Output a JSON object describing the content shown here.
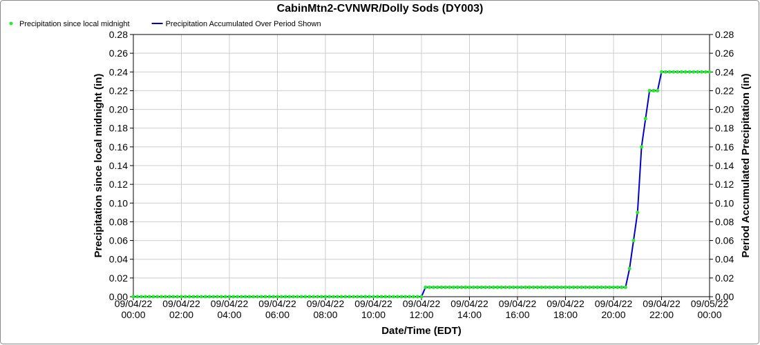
{
  "chart_data": {
    "type": "line",
    "title": "CabinMtn2-CVNWR/Dolly Sods (DY003)",
    "x_label": "Date/Time (EDT)",
    "y_label": "Precipitation since local midnight (in)",
    "y2_label": "Period Accumulated Precipitation (in)",
    "grid": true,
    "legend": "top-left",
    "x": [
      "09/04/22 00:00",
      "09/04/22 00:10",
      "09/04/22 00:20",
      "09/04/22 00:30",
      "09/04/22 00:40",
      "09/04/22 00:50",
      "09/04/22 01:00",
      "09/04/22 01:10",
      "09/04/22 01:20",
      "09/04/22 01:30",
      "09/04/22 01:40",
      "09/04/22 01:50",
      "09/04/22 02:00",
      "09/04/22 02:10",
      "09/04/22 02:20",
      "09/04/22 02:30",
      "09/04/22 02:40",
      "09/04/22 02:50",
      "09/04/22 03:00",
      "09/04/22 03:10",
      "09/04/22 03:20",
      "09/04/22 03:30",
      "09/04/22 03:40",
      "09/04/22 03:50",
      "09/04/22 04:00",
      "09/04/22 04:10",
      "09/04/22 04:20",
      "09/04/22 04:30",
      "09/04/22 04:40",
      "09/04/22 04:50",
      "09/04/22 05:00",
      "09/04/22 05:10",
      "09/04/22 05:20",
      "09/04/22 05:30",
      "09/04/22 05:40",
      "09/04/22 05:50",
      "09/04/22 06:00",
      "09/04/22 06:10",
      "09/04/22 06:20",
      "09/04/22 06:30",
      "09/04/22 06:40",
      "09/04/22 06:50",
      "09/04/22 07:00",
      "09/04/22 07:10",
      "09/04/22 07:20",
      "09/04/22 07:30",
      "09/04/22 07:40",
      "09/04/22 07:50",
      "09/04/22 08:00",
      "09/04/22 08:10",
      "09/04/22 08:20",
      "09/04/22 08:30",
      "09/04/22 08:40",
      "09/04/22 08:50",
      "09/04/22 09:00",
      "09/04/22 09:10",
      "09/04/22 09:20",
      "09/04/22 09:30",
      "09/04/22 09:40",
      "09/04/22 09:50",
      "09/04/22 10:00",
      "09/04/22 10:10",
      "09/04/22 10:20",
      "09/04/22 10:30",
      "09/04/22 10:40",
      "09/04/22 10:50",
      "09/04/22 11:00",
      "09/04/22 11:10",
      "09/04/22 11:20",
      "09/04/22 11:30",
      "09/04/22 11:40",
      "09/04/22 11:50",
      "09/04/22 12:00",
      "09/04/22 12:10",
      "09/04/22 12:20",
      "09/04/22 12:30",
      "09/04/22 12:40",
      "09/04/22 12:50",
      "09/04/22 13:00",
      "09/04/22 13:10",
      "09/04/22 13:20",
      "09/04/22 13:30",
      "09/04/22 13:40",
      "09/04/22 13:50",
      "09/04/22 14:00",
      "09/04/22 14:10",
      "09/04/22 14:20",
      "09/04/22 14:30",
      "09/04/22 14:40",
      "09/04/22 14:50",
      "09/04/22 15:00",
      "09/04/22 15:10",
      "09/04/22 15:20",
      "09/04/22 15:30",
      "09/04/22 15:40",
      "09/04/22 15:50",
      "09/04/22 16:00",
      "09/04/22 16:10",
      "09/04/22 16:20",
      "09/04/22 16:30",
      "09/04/22 16:40",
      "09/04/22 16:50",
      "09/04/22 17:00",
      "09/04/22 17:10",
      "09/04/22 17:20",
      "09/04/22 17:30",
      "09/04/22 17:40",
      "09/04/22 17:50",
      "09/04/22 18:00",
      "09/04/22 18:10",
      "09/04/22 18:20",
      "09/04/22 18:30",
      "09/04/22 18:40",
      "09/04/22 18:50",
      "09/04/22 19:00",
      "09/04/22 19:10",
      "09/04/22 19:20",
      "09/04/22 19:30",
      "09/04/22 19:40",
      "09/04/22 19:50",
      "09/04/22 20:00",
      "09/04/22 20:10",
      "09/04/22 20:20",
      "09/04/22 20:30",
      "09/04/22 20:40",
      "09/04/22 20:50",
      "09/04/22 21:00",
      "09/04/22 21:10",
      "09/04/22 21:20",
      "09/04/22 21:30",
      "09/04/22 21:40",
      "09/04/22 21:50",
      "09/04/22 22:00",
      "09/04/22 22:10",
      "09/04/22 22:20",
      "09/04/22 22:30",
      "09/04/22 22:40",
      "09/04/22 22:50",
      "09/04/22 23:00",
      "09/04/22 23:10",
      "09/04/22 23:20",
      "09/04/22 23:30",
      "09/04/22 23:40",
      "09/04/22 23:50",
      "09/05/22 00:00"
    ],
    "series": [
      {
        "name": "Precipitation since local midnight",
        "color": "#22ee22",
        "style": "points",
        "values": [
          0,
          0,
          0,
          0,
          0,
          0,
          0,
          0,
          0,
          0,
          0,
          0,
          0,
          0,
          0,
          0,
          0,
          0,
          0,
          0,
          0,
          0,
          0,
          0,
          0,
          0,
          0,
          0,
          0,
          0,
          0,
          0,
          0,
          0,
          0,
          0,
          0,
          0,
          0,
          0,
          0,
          0,
          0,
          0,
          0,
          0,
          0,
          0,
          0,
          0,
          0,
          0,
          0,
          0,
          0,
          0,
          0,
          0,
          0,
          0,
          0,
          0,
          0,
          0,
          0,
          0,
          0,
          0,
          0,
          0,
          0,
          0,
          0,
          0.01,
          0.01,
          0.01,
          0.01,
          0.01,
          0.01,
          0.01,
          0.01,
          0.01,
          0.01,
          0.01,
          0.01,
          0.01,
          0.01,
          0.01,
          0.01,
          0.01,
          0.01,
          0.01,
          0.01,
          0.01,
          0.01,
          0.01,
          0.01,
          0.01,
          0.01,
          0.01,
          0.01,
          0.01,
          0.01,
          0.01,
          0.01,
          0.01,
          0.01,
          0.01,
          0.01,
          0.01,
          0.01,
          0.01,
          0.01,
          0.01,
          0.01,
          0.01,
          0.01,
          0.01,
          0.01,
          0.01,
          0.01,
          0.01,
          0.01,
          0.01,
          0.03,
          0.06,
          0.09,
          0.16,
          0.19,
          0.22,
          0.22,
          0.22,
          0.24,
          0.24,
          0.24,
          0.24,
          0.24,
          0.24,
          0.24,
          0.24,
          0.24,
          0.24,
          0.24,
          0.24,
          0.24
        ]
      },
      {
        "name": "Precipitation Accumulated Over Period Shown",
        "color": "#0000cc",
        "style": "line",
        "axis": "y2",
        "values": [
          0,
          0,
          0,
          0,
          0,
          0,
          0,
          0,
          0,
          0,
          0,
          0,
          0,
          0,
          0,
          0,
          0,
          0,
          0,
          0,
          0,
          0,
          0,
          0,
          0,
          0,
          0,
          0,
          0,
          0,
          0,
          0,
          0,
          0,
          0,
          0,
          0,
          0,
          0,
          0,
          0,
          0,
          0,
          0,
          0,
          0,
          0,
          0,
          0,
          0,
          0,
          0,
          0,
          0,
          0,
          0,
          0,
          0,
          0,
          0,
          0,
          0,
          0,
          0,
          0,
          0,
          0,
          0,
          0,
          0,
          0,
          0,
          0,
          0.01,
          0.01,
          0.01,
          0.01,
          0.01,
          0.01,
          0.01,
          0.01,
          0.01,
          0.01,
          0.01,
          0.01,
          0.01,
          0.01,
          0.01,
          0.01,
          0.01,
          0.01,
          0.01,
          0.01,
          0.01,
          0.01,
          0.01,
          0.01,
          0.01,
          0.01,
          0.01,
          0.01,
          0.01,
          0.01,
          0.01,
          0.01,
          0.01,
          0.01,
          0.01,
          0.01,
          0.01,
          0.01,
          0.01,
          0.01,
          0.01,
          0.01,
          0.01,
          0.01,
          0.01,
          0.01,
          0.01,
          0.01,
          0.01,
          0.01,
          0.01,
          0.03,
          0.06,
          0.09,
          0.16,
          0.19,
          0.22,
          0.22,
          0.22,
          0.24,
          0.24,
          0.24,
          0.24,
          0.24,
          0.24,
          0.24,
          0.24,
          0.24,
          0.24,
          0.24,
          0.24,
          0.24
        ]
      }
    ],
    "xlim": [
      "09/04/22 00:00",
      "09/05/22 00:00"
    ],
    "xticks": [
      "09/04/22 00:00",
      "09/04/22 02:00",
      "09/04/22 04:00",
      "09/04/22 06:00",
      "09/04/22 08:00",
      "09/04/22 10:00",
      "09/04/22 12:00",
      "09/04/22 14:00",
      "09/04/22 16:00",
      "09/04/22 18:00",
      "09/04/22 20:00",
      "09/04/22 22:00",
      "09/05/22 00:00"
    ],
    "ylim": [
      0,
      0.28
    ],
    "yticks": [
      {
        "value": 0,
        "label": "0.00"
      },
      {
        "value": 0.02,
        "label": "0.02"
      },
      {
        "value": 0.04,
        "label": "0.04"
      },
      {
        "value": 0.06,
        "label": "0.06"
      },
      {
        "value": 0.08,
        "label": "0.08"
      },
      {
        "value": 0.1,
        "label": "0.10"
      },
      {
        "value": 0.12,
        "label": "0.12"
      },
      {
        "value": 0.14,
        "label": "0.14"
      },
      {
        "value": 0.16,
        "label": "0.16"
      },
      {
        "value": 0.18,
        "label": "0.18"
      },
      {
        "value": 0.2,
        "label": "0.20"
      },
      {
        "value": 0.22,
        "label": "0.22"
      },
      {
        "value": 0.24,
        "label": "0.24"
      },
      {
        "value": 0.26,
        "label": "0.26"
      },
      {
        "value": 0.28,
        "label": "0.28"
      }
    ],
    "y2lim": [
      0,
      0.28
    ],
    "y2ticks": [
      {
        "value": 0,
        "label": "0.00"
      },
      {
        "value": 0.02,
        "label": "0.02"
      },
      {
        "value": 0.04,
        "label": "0.04"
      },
      {
        "value": 0.06,
        "label": "0.06"
      },
      {
        "value": 0.08,
        "label": "0.08"
      },
      {
        "value": 0.1,
        "label": "0.10"
      },
      {
        "value": 0.12,
        "label": "0.12"
      },
      {
        "value": 0.14,
        "label": "0.14"
      },
      {
        "value": 0.16,
        "label": "0.16"
      },
      {
        "value": 0.18,
        "label": "0.18"
      },
      {
        "value": 0.2,
        "label": "0.20"
      },
      {
        "value": 0.22,
        "label": "0.22"
      },
      {
        "value": 0.24,
        "label": "0.24"
      },
      {
        "value": 0.26,
        "label": "0.26"
      },
      {
        "value": 0.28,
        "label": "0.28"
      }
    ]
  }
}
